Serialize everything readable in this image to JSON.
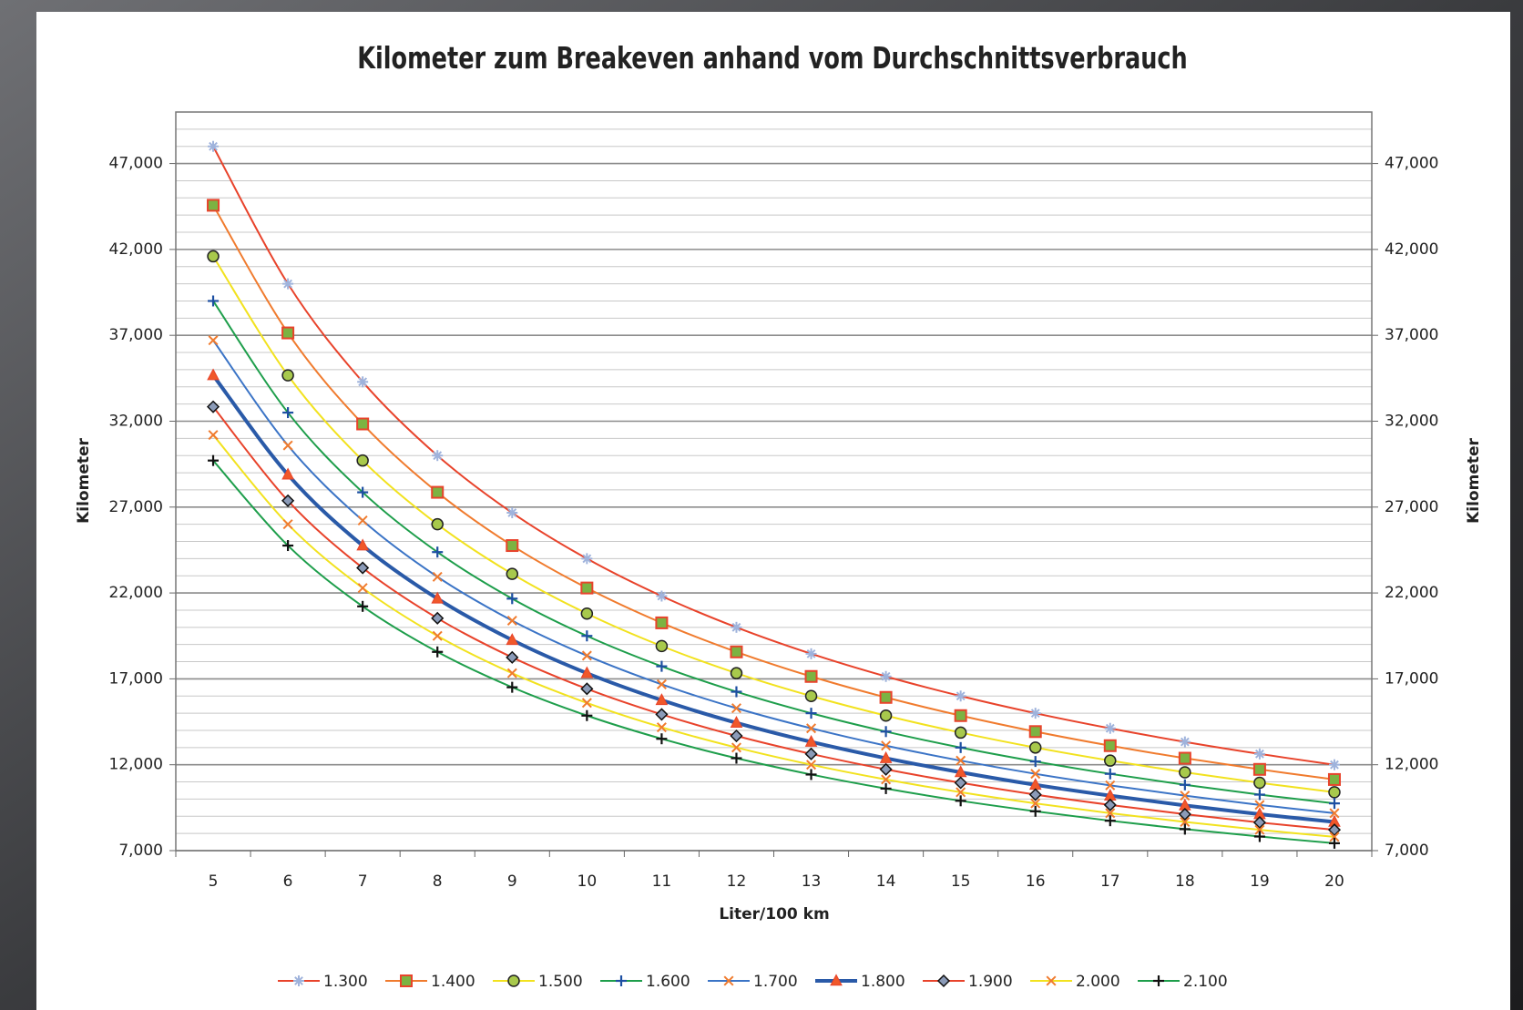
{
  "chart_data": {
    "type": "line",
    "title": "Kilometer zum Breakeven anhand vom Durchschnittsverbrauch",
    "x_label": "Liter/100 km",
    "y_label": "Kilometer",
    "y2_label": "Kilometer",
    "categories": [
      "5",
      "6",
      "7",
      "8",
      "9",
      "10",
      "11",
      "12",
      "13",
      "14",
      "15",
      "16",
      "17",
      "18",
      "19",
      "20"
    ],
    "ylim": [
      7000,
      50000
    ],
    "yticks": [
      {
        "value": 7000,
        "label": "7,000"
      },
      {
        "value": 12000,
        "label": "12,000"
      },
      {
        "value": 17000,
        "label": "17,000"
      },
      {
        "value": 22000,
        "label": "22,000"
      },
      {
        "value": 27000,
        "label": "27,000"
      },
      {
        "value": 32000,
        "label": "32,000"
      },
      {
        "value": 37000,
        "label": "37,000"
      },
      {
        "value": 42000,
        "label": "42,000"
      },
      {
        "value": 47000,
        "label": "47,000"
      }
    ],
    "minor_grid_step": 1000,
    "grid": true,
    "legend": "bottom",
    "series": [
      {
        "name": "1.300",
        "color": "#e8432b",
        "marker": "asterisk",
        "marker_color": "#9fb3dc",
        "values": [
          48000,
          40000,
          34290,
          30000,
          26670,
          24000,
          21820,
          20000,
          18460,
          17140,
          16000,
          15000,
          14120,
          13330,
          12630,
          12000
        ]
      },
      {
        "name": "1.400",
        "color": "#f07b2e",
        "marker": "square",
        "marker_color": "#7cb342",
        "values": [
          44570,
          37140,
          31840,
          27860,
          24760,
          22290,
          20260,
          18570,
          17140,
          15920,
          14860,
          13930,
          13110,
          12380,
          11730,
          11140
        ]
      },
      {
        "name": "1.500",
        "color": "#f2e21f",
        "marker": "circle",
        "marker_color": "#a8c94c",
        "values": [
          41600,
          34670,
          29710,
          26000,
          23110,
          20800,
          18910,
          17330,
          16000,
          14860,
          13870,
          13000,
          12240,
          11560,
          10950,
          10400
        ]
      },
      {
        "name": "1.600",
        "color": "#1e9e4b",
        "marker": "plus",
        "marker_color": "#1d4fa2",
        "values": [
          39000,
          32500,
          27860,
          24380,
          21670,
          19500,
          17730,
          16250,
          15000,
          13930,
          13000,
          12190,
          11470,
          10830,
          10260,
          9750
        ]
      },
      {
        "name": "1.700",
        "color": "#3b74c6",
        "marker": "cross",
        "marker_color": "#f07b2e",
        "values": [
          36710,
          30590,
          26220,
          22940,
          20390,
          18350,
          16680,
          15290,
          14120,
          13110,
          12240,
          11470,
          10800,
          10200,
          9660,
          9180
        ]
      },
      {
        "name": "1.800",
        "color": "#2a5aa8",
        "marker": "triangle",
        "marker_color": "#f0582a",
        "line_width": 4,
        "values": [
          34670,
          28890,
          24760,
          21670,
          19260,
          17330,
          15760,
          14440,
          13330,
          12380,
          11560,
          10830,
          10200,
          9630,
          9120,
          8670
        ]
      },
      {
        "name": "1.900",
        "color": "#e8432b",
        "marker": "diamond",
        "marker_color": "#8b9bb8",
        "values": [
          32840,
          27370,
          23460,
          20530,
          18250,
          16420,
          14930,
          13680,
          12630,
          11730,
          10950,
          10260,
          9660,
          9120,
          8640,
          8210
        ]
      },
      {
        "name": "2.000",
        "color": "#f2e21f",
        "marker": "cross",
        "marker_color": "#f07b2e",
        "values": [
          31200,
          26000,
          22290,
          19500,
          17330,
          15600,
          14180,
          13000,
          12000,
          11140,
          10400,
          9750,
          9180,
          8670,
          8210,
          7800
        ]
      },
      {
        "name": "2.100",
        "color": "#1e9e4b",
        "marker": "plus",
        "marker_color": "#111111",
        "values": [
          29710,
          24760,
          21220,
          18570,
          16510,
          14860,
          13510,
          12380,
          11430,
          10610,
          9900,
          9290,
          8740,
          8250,
          7820,
          7430
        ]
      }
    ]
  }
}
